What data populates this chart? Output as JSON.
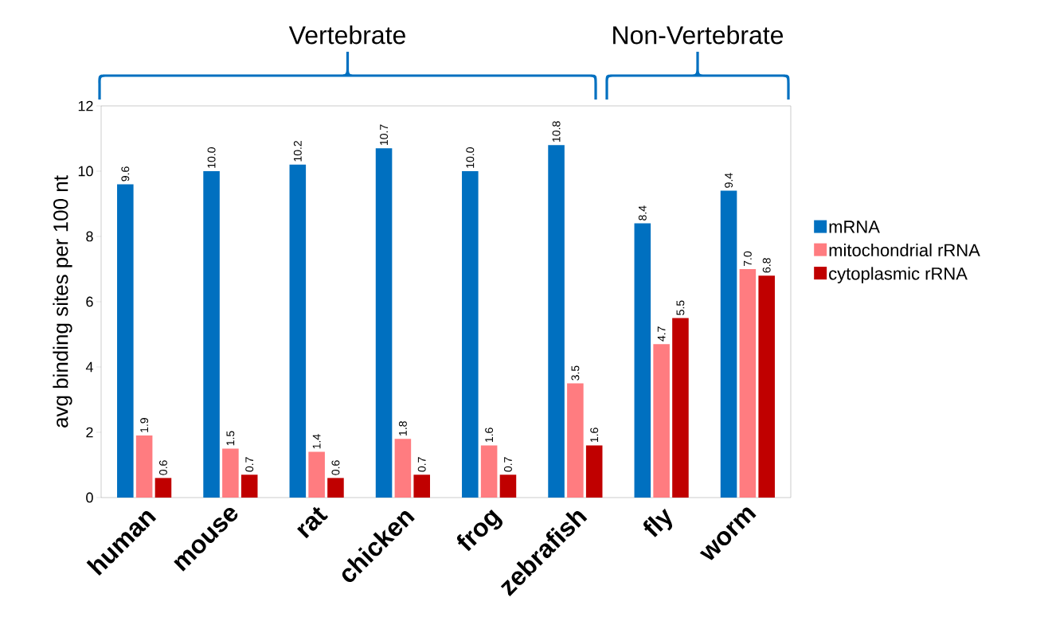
{
  "chart_data": {
    "type": "bar",
    "ylabel": "avg binding sites per 100 nt",
    "annotations": [
      "Vertebrate",
      "Non-Vertebrate"
    ],
    "categories": [
      "human",
      "mouse",
      "rat",
      "chicken",
      "frog",
      "zebrafish",
      "fly",
      "worm"
    ],
    "series": [
      {
        "name": "mRNA",
        "color": "#0070c0",
        "values": [
          9.6,
          10.0,
          10.2,
          10.7,
          10.0,
          10.8,
          8.4,
          9.4
        ],
        "value_labels": [
          "9.6",
          "10.0",
          "10.2",
          "10.7",
          "10.0",
          "10.8",
          "8.4",
          "9.4"
        ]
      },
      {
        "name": "mitochondrial rRNA",
        "color": "#ff7c80",
        "values": [
          1.9,
          1.5,
          1.4,
          1.8,
          1.6,
          3.5,
          4.7,
          7.0
        ],
        "value_labels": [
          "1.9",
          "1.5",
          "1.4",
          "1.8",
          "1.6",
          "3.5",
          "4.7",
          "7.0"
        ]
      },
      {
        "name": "cytoplasmic rRNA",
        "color": "#c00000",
        "values": [
          0.6,
          0.7,
          0.6,
          0.7,
          0.7,
          1.6,
          5.5,
          6.8
        ],
        "value_labels": [
          "0.6",
          "0.7",
          "0.6",
          "0.7",
          "0.7",
          "1.6",
          "5.5",
          "6.8"
        ]
      }
    ],
    "ylim": [
      0,
      12
    ],
    "yticks": [
      0,
      2,
      4,
      6,
      8,
      10,
      12
    ],
    "grid": false,
    "legend": "right"
  }
}
